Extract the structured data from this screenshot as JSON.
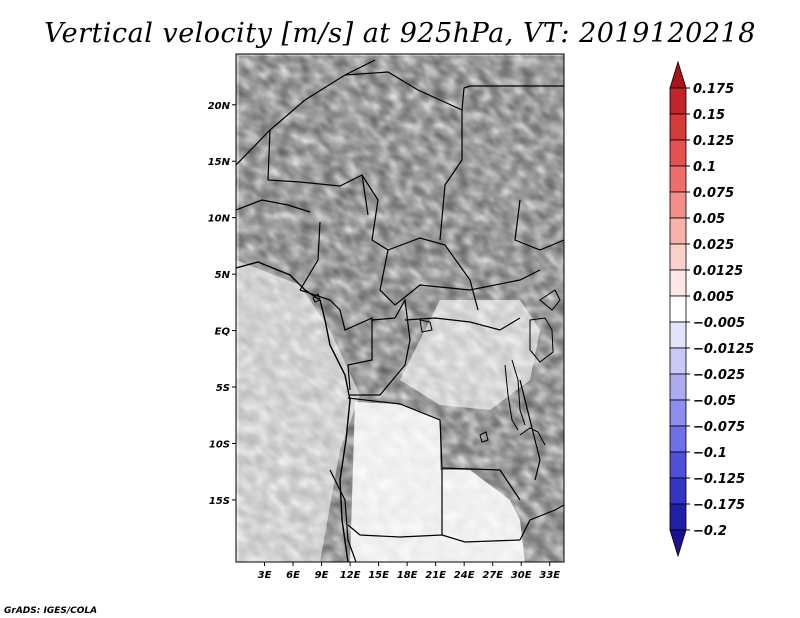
{
  "title": "Vertical velocity [m/s] at 925hPa, VT: 2019120218",
  "credit": "GrADS: IGES/COLA",
  "map": {
    "lon_range": [
      0,
      34.5
    ],
    "lat_range": [
      -20.5,
      24.5
    ],
    "lat_ticks": [
      {
        "value": 20,
        "label": "20N"
      },
      {
        "value": 15,
        "label": "15N"
      },
      {
        "value": 10,
        "label": "10N"
      },
      {
        "value": 5,
        "label": "5N"
      },
      {
        "value": 0,
        "label": "EQ"
      },
      {
        "value": -5,
        "label": "5S"
      },
      {
        "value": -10,
        "label": "10S"
      },
      {
        "value": -15,
        "label": "15S"
      }
    ],
    "lon_ticks": [
      {
        "value": 3,
        "label": "3E"
      },
      {
        "value": 6,
        "label": "6E"
      },
      {
        "value": 9,
        "label": "9E"
      },
      {
        "value": 12,
        "label": "12E"
      },
      {
        "value": 15,
        "label": "15E"
      },
      {
        "value": 18,
        "label": "18E"
      },
      {
        "value": 21,
        "label": "21E"
      },
      {
        "value": 24,
        "label": "24E"
      },
      {
        "value": 27,
        "label": "27E"
      },
      {
        "value": 30,
        "label": "30E"
      },
      {
        "value": 33,
        "label": "33E"
      }
    ]
  },
  "colorbar": {
    "labels": [
      "0.175",
      "0.15",
      "0.125",
      "0.1",
      "0.075",
      "0.05",
      "0.025",
      "0.0125",
      "0.005",
      "−0.005",
      "−0.0125",
      "−0.025",
      "−0.05",
      "−0.075",
      "−0.1",
      "−0.125",
      "−0.175",
      "−0.2"
    ],
    "colors": [
      "#a8141a",
      "#c2262a",
      "#d63a39",
      "#e4514e",
      "#ee6e69",
      "#f48e88",
      "#f8b1ab",
      "#fbd0cb",
      "#fde8e6",
      "#ffffff",
      "#e3e3fb",
      "#c9c9f7",
      "#ababf1",
      "#8d8df0",
      "#6f6fe7",
      "#4f4fd9",
      "#3535c4",
      "#1f1fa8",
      "#1a1090"
    ]
  }
}
